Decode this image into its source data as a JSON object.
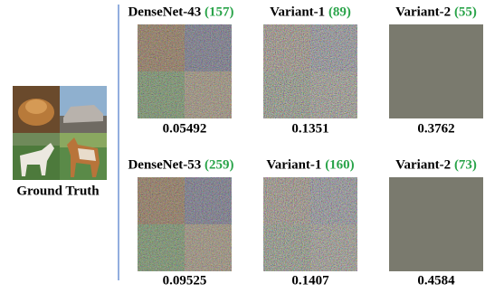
{
  "ground_truth": {
    "label": "Ground Truth"
  },
  "rows": [
    {
      "panels": [
        {
          "model": "DenseNet-43",
          "count": "(157)",
          "score": "0.05492"
        },
        {
          "model": "Variant-1",
          "count": "(89)",
          "score": "0.1351"
        },
        {
          "model": "Variant-2",
          "count": "(55)",
          "score": "0.3762"
        }
      ]
    },
    {
      "panels": [
        {
          "model": "DenseNet-53",
          "count": "(259)",
          "score": "0.09525"
        },
        {
          "model": "Variant-1",
          "count": "(160)",
          "score": "0.1407"
        },
        {
          "model": "Variant-2",
          "count": "(73)",
          "score": "0.4584"
        }
      ]
    }
  ]
}
